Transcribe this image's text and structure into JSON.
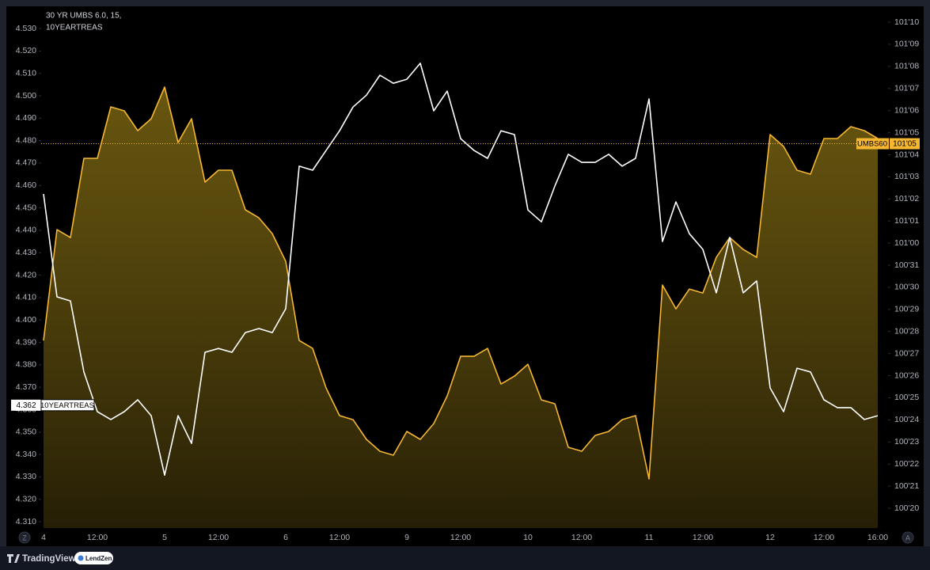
{
  "chart_data": {
    "type": "line",
    "title": "30 YR UMBS 6.0, 15,",
    "subtitle": "10YEARTREAS",
    "categories": [
      "4",
      null,
      null,
      null,
      "12:00",
      null,
      null,
      null,
      null,
      "5",
      null,
      null,
      null,
      "12:00",
      null,
      null,
      null,
      null,
      "6",
      null,
      null,
      null,
      "12:00",
      null,
      null,
      null,
      null,
      "9",
      null,
      null,
      null,
      "12:00",
      null,
      null,
      null,
      null,
      "10",
      null,
      null,
      null,
      "12:00",
      null,
      null,
      null,
      null,
      "11",
      null,
      null,
      null,
      "12:00",
      null,
      null,
      null,
      null,
      "12",
      null,
      null,
      null,
      "12:00",
      null,
      null,
      null,
      "16:00"
    ],
    "series": [
      {
        "name": "UMBS60",
        "color": "#f5b731",
        "axis": "y2",
        "fill": "area",
        "tag": {
          "value": 101.140625,
          "label": "101'05"
        },
        "price_line": true,
        "values": [
          100.8623,
          101.0191,
          101.0079,
          101.1199,
          101.1199,
          101.1927,
          101.1871,
          101.1591,
          101.1759,
          101.2207,
          101.1423,
          101.1759,
          101.0863,
          101.1031,
          101.1031,
          101.0471,
          101.0359,
          101.0135,
          100.9743,
          100.8623,
          100.8511,
          100.7951,
          100.756,
          100.7503,
          100.7224,
          100.7056,
          100.7,
          100.7336,
          100.7224,
          100.7447,
          100.7839,
          100.8399,
          100.8399,
          100.8511,
          100.8007,
          100.8119,
          100.8287,
          100.7783,
          100.7728,
          100.7112,
          100.7056,
          100.728,
          100.7336,
          100.7503,
          100.756,
          100.6664,
          100.9407,
          100.9071,
          100.9351,
          100.9295,
          100.9799,
          101.0079,
          100.9911,
          100.9799,
          101.1535,
          101.1367,
          101.1031,
          101.0975,
          101.1479,
          101.1479,
          101.1647,
          101.1591,
          101.1479
        ]
      },
      {
        "name": "10YEARTREAS",
        "color": "#ffffff",
        "axis": "y",
        "tag": 4.362,
        "values": [
          4.4562,
          4.4103,
          4.4085,
          4.3768,
          4.3591,
          4.3556,
          4.3591,
          4.3644,
          4.3573,
          4.3308,
          4.3573,
          4.345,
          4.3856,
          4.3873,
          4.3856,
          4.3944,
          4.3962,
          4.3944,
          4.405,
          4.4686,
          4.4668,
          4.4756,
          4.4844,
          4.495,
          4.5003,
          4.5092,
          4.5056,
          4.5074,
          4.5145,
          4.4933,
          4.5021,
          4.4809,
          4.4756,
          4.4721,
          4.4844,
          4.4827,
          4.4491,
          4.4438,
          4.4597,
          4.4739,
          4.4703,
          4.4703,
          4.4739,
          4.4686,
          4.4721,
          4.4986,
          4.435,
          4.4527,
          4.4385,
          4.4315,
          4.4121,
          4.4368,
          4.4121,
          4.4174,
          4.3697,
          4.3591,
          4.3785,
          4.3768,
          4.3644,
          4.3609,
          4.3609,
          4.3556,
          4.3573
        ]
      }
    ],
    "ylim": [
      4.3072,
      4.5392
    ],
    "yticks": [
      {
        "value": 4.53,
        "label": "4.530"
      },
      {
        "value": 4.52,
        "label": "4.520"
      },
      {
        "value": 4.51,
        "label": "4.510"
      },
      {
        "value": 4.5,
        "label": "4.500"
      },
      {
        "value": 4.49,
        "label": "4.490"
      },
      {
        "value": 4.48,
        "label": "4.480"
      },
      {
        "value": 4.47,
        "label": "4.470"
      },
      {
        "value": 4.46,
        "label": "4.460"
      },
      {
        "value": 4.45,
        "label": "4.450"
      },
      {
        "value": 4.44,
        "label": "4.440"
      },
      {
        "value": 4.43,
        "label": "4.430"
      },
      {
        "value": 4.42,
        "label": "4.420"
      },
      {
        "value": 4.41,
        "label": "4.410"
      },
      {
        "value": 4.4,
        "label": "4.400"
      },
      {
        "value": 4.39,
        "label": "4.390"
      },
      {
        "value": 4.38,
        "label": "4.380"
      },
      {
        "value": 4.37,
        "label": "4.370"
      },
      {
        "value": 4.36,
        "label": "4.360"
      },
      {
        "value": 4.35,
        "label": "4.350"
      },
      {
        "value": 4.34,
        "label": "4.340"
      },
      {
        "value": 4.33,
        "label": "4.330"
      },
      {
        "value": 4.32,
        "label": "4.320"
      },
      {
        "value": 4.31,
        "label": "4.310"
      }
    ],
    "y2lim": [
      100.597,
      101.3327
    ],
    "y2ticks": [
      {
        "value": 101.3125,
        "label": "101'10"
      },
      {
        "value": 101.28125,
        "label": "101'09"
      },
      {
        "value": 101.25,
        "label": "101'08"
      },
      {
        "value": 101.21875,
        "label": "101'07"
      },
      {
        "value": 101.1875,
        "label": "101'06"
      },
      {
        "value": 101.15625,
        "label": "101'05"
      },
      {
        "value": 101.125,
        "label": "101'04"
      },
      {
        "value": 101.09375,
        "label": "101'03"
      },
      {
        "value": 101.0625,
        "label": "101'02"
      },
      {
        "value": 101.03125,
        "label": "101'01"
      },
      {
        "value": 101,
        "label": "101'00"
      },
      {
        "value": 100.96875,
        "label": "100'31"
      },
      {
        "value": 100.9375,
        "label": "100'30"
      },
      {
        "value": 100.90625,
        "label": "100'29"
      },
      {
        "value": 100.875,
        "label": "100'28"
      },
      {
        "value": 100.84375,
        "label": "100'27"
      },
      {
        "value": 100.8125,
        "label": "100'26"
      },
      {
        "value": 100.78125,
        "label": "100'25"
      },
      {
        "value": 100.75,
        "label": "100'24"
      },
      {
        "value": 100.71875,
        "label": "100'23"
      },
      {
        "value": 100.6875,
        "label": "100'22"
      },
      {
        "value": 100.65625,
        "label": "100'21"
      },
      {
        "value": 100.625,
        "label": "100'20"
      }
    ],
    "grid": false
  },
  "footer": {
    "left_button": "Z",
    "right_button": "A",
    "brand": "TradingView",
    "partner": "LendZen"
  }
}
